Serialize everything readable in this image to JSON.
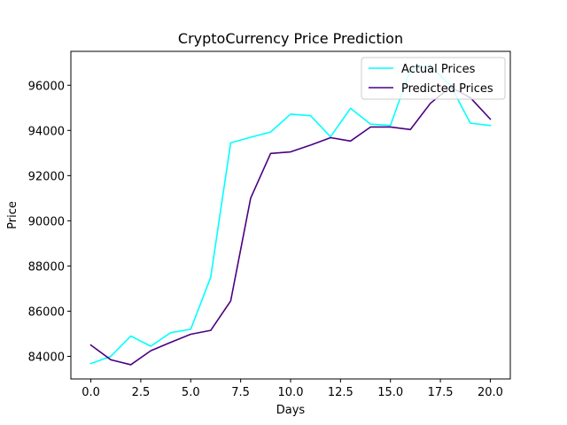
{
  "chart_data": {
    "type": "line",
    "title": "CryptoCurrency Price Prediction",
    "xlabel": "Days",
    "ylabel": "Price",
    "xlim": [
      -1.0,
      21.0
    ],
    "ylim": [
      83000,
      97500
    ],
    "xticks": [
      0.0,
      2.5,
      5.0,
      7.5,
      10.0,
      12.5,
      15.0,
      17.5,
      20.0
    ],
    "xtick_labels": [
      "0.0",
      "2.5",
      "5.0",
      "7.5",
      "10.0",
      "12.5",
      "15.0",
      "17.5",
      "20.0"
    ],
    "yticks": [
      84000,
      86000,
      88000,
      90000,
      92000,
      94000,
      96000
    ],
    "ytick_labels": [
      "84000",
      "86000",
      "88000",
      "90000",
      "92000",
      "94000",
      "96000"
    ],
    "grid": false,
    "legend_position": "top-right",
    "x": [
      0,
      1,
      2,
      3,
      4,
      5,
      6,
      7,
      8,
      9,
      10,
      11,
      12,
      13,
      14,
      15,
      16,
      17,
      18,
      19,
      20
    ],
    "series": [
      {
        "name": "Actual Prices",
        "color": "#00ffff",
        "values": [
          83680,
          84000,
          84900,
          84450,
          85050,
          85200,
          87500,
          93450,
          93700,
          93930,
          94720,
          94650,
          93720,
          94980,
          94280,
          94220,
          96700,
          96850,
          96000,
          94320,
          94220
        ]
      },
      {
        "name": "Predicted Prices",
        "color": "#4b0082",
        "values": [
          84500,
          83850,
          83630,
          84250,
          84620,
          84980,
          85150,
          86450,
          91000,
          92980,
          93050,
          93350,
          93680,
          93530,
          94150,
          94150,
          94040,
          95200,
          95920,
          95450,
          94500
        ]
      }
    ]
  }
}
